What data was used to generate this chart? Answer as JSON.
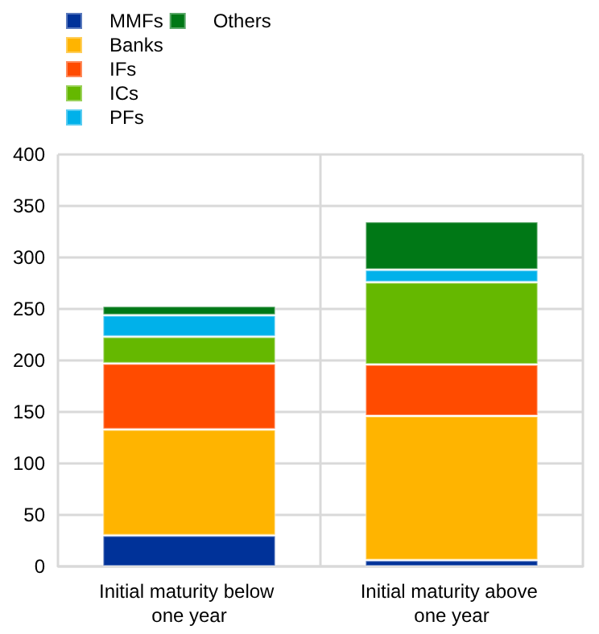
{
  "chart_data": {
    "type": "bar",
    "stacked": true,
    "categories": [
      "Initial maturity below one year",
      "Initial maturity above one year"
    ],
    "series": [
      {
        "name": "MMFs",
        "color": "#003299",
        "values": [
          30,
          6
        ]
      },
      {
        "name": "Banks",
        "color": "#ffb400",
        "values": [
          103,
          140
        ]
      },
      {
        "name": "IFs",
        "color": "#ff4b00",
        "values": [
          64,
          50
        ]
      },
      {
        "name": "ICs",
        "color": "#65b800",
        "values": [
          26,
          80
        ]
      },
      {
        "name": "PFs",
        "color": "#00b1ea",
        "values": [
          21,
          12
        ]
      },
      {
        "name": "Others",
        "color": "#007816",
        "values": [
          9,
          47
        ]
      }
    ],
    "ylim": [
      0,
      400
    ],
    "yticks": [
      0,
      50,
      100,
      150,
      200,
      250,
      300,
      350,
      400
    ],
    "grid": true,
    "legend": "top left"
  }
}
